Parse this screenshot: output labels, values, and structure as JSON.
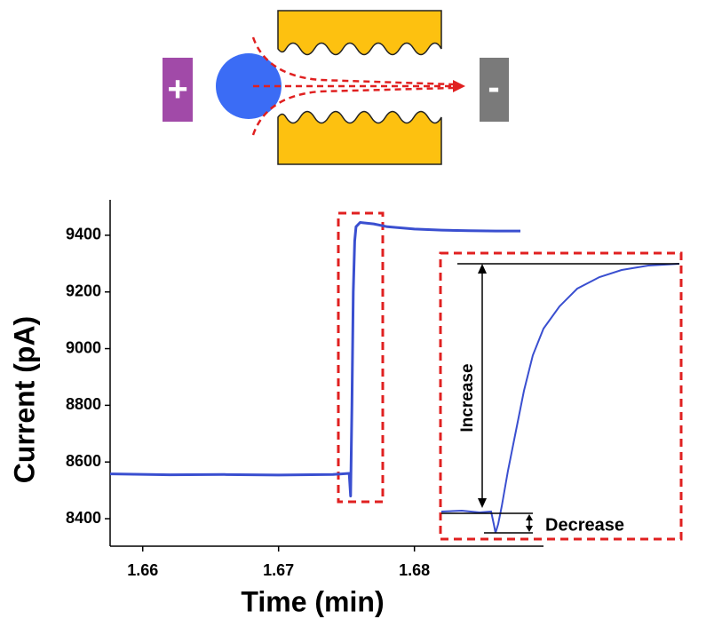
{
  "schematic": {
    "positive_label": "+",
    "negative_label": "-"
  },
  "chart_data": {
    "type": "line",
    "x_label": "Time (min)",
    "y_label": "Current (pA)",
    "x": [
      1.6576,
      1.662,
      1.666,
      1.67,
      1.674,
      1.6752,
      1.6753,
      1.6754,
      1.6755,
      1.6756,
      1.6757,
      1.676,
      1.677,
      1.678,
      1.68,
      1.682,
      1.684,
      1.686,
      1.6878
    ],
    "series": [
      {
        "color": "#3a4fd0",
        "values": [
          8558,
          8555,
          8556,
          8554,
          8556,
          8560,
          8480,
          8800,
          9200,
          9380,
          9430,
          9445,
          9440,
          9430,
          9422,
          9418,
          9416,
          9415,
          9415
        ]
      }
    ],
    "xlim": [
      1.6576,
      1.6895
    ],
    "ylim": [
      8303,
      9525
    ],
    "xticks": [
      1.66,
      1.67,
      1.68
    ],
    "yticks": [
      8400,
      8600,
      8800,
      9000,
      9200,
      9400
    ],
    "annotations": {
      "increase": "Increase",
      "decrease": "Decrease"
    }
  }
}
